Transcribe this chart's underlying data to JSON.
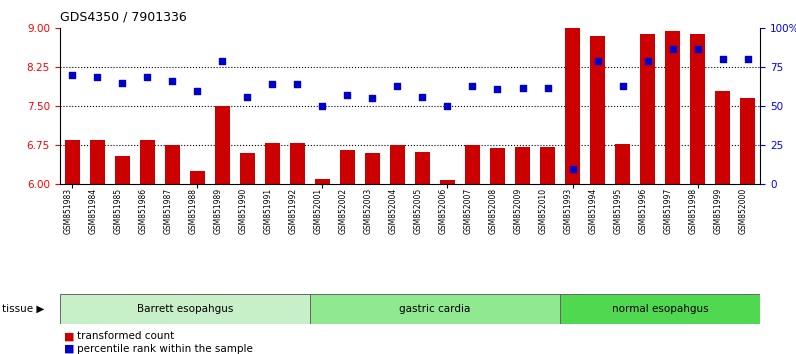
{
  "title": "GDS4350 / 7901336",
  "samples": [
    "GSM851983",
    "GSM851984",
    "GSM851985",
    "GSM851986",
    "GSM851987",
    "GSM851988",
    "GSM851989",
    "GSM851990",
    "GSM851991",
    "GSM851992",
    "GSM852001",
    "GSM852002",
    "GSM852003",
    "GSM852004",
    "GSM852005",
    "GSM852006",
    "GSM852007",
    "GSM852008",
    "GSM852009",
    "GSM852010",
    "GSM851993",
    "GSM851994",
    "GSM851995",
    "GSM851996",
    "GSM851997",
    "GSM851998",
    "GSM851999",
    "GSM852000"
  ],
  "bar_values": [
    6.85,
    6.85,
    6.55,
    6.85,
    6.75,
    6.25,
    7.5,
    6.6,
    6.8,
    6.8,
    6.1,
    6.65,
    6.6,
    6.75,
    6.62,
    6.08,
    6.75,
    6.7,
    6.72,
    6.72,
    9.0,
    8.85,
    6.78,
    8.9,
    8.95,
    8.9,
    7.8,
    7.65
  ],
  "dot_values": [
    70,
    69,
    65,
    69,
    66,
    60,
    79,
    56,
    64,
    64,
    50,
    57,
    55,
    63,
    56,
    50,
    63,
    61,
    62,
    62,
    10,
    79,
    63,
    79,
    87,
    87,
    80,
    80
  ],
  "groups": [
    {
      "label": "Barrett esopahgus",
      "start": 0,
      "end": 10,
      "color": "#c8f0c8"
    },
    {
      "label": "gastric cardia",
      "start": 10,
      "end": 20,
      "color": "#90e890"
    },
    {
      "label": "normal esopahgus",
      "start": 20,
      "end": 28,
      "color": "#50d850"
    }
  ],
  "ylim_left": [
    6,
    9
  ],
  "ylim_right": [
    0,
    100
  ],
  "yticks_left": [
    6,
    6.75,
    7.5,
    8.25,
    9
  ],
  "yticks_right": [
    0,
    25,
    50,
    75,
    100
  ],
  "ytick_labels_right": [
    "0",
    "25",
    "50",
    "75",
    "100%"
  ],
  "hlines": [
    6.75,
    7.5,
    8.25
  ],
  "bar_color": "#cc0000",
  "dot_color": "#0000cc",
  "bar_width": 0.6,
  "legend_items": [
    "transformed count",
    "percentile rank within the sample"
  ],
  "tissue_label": "tissue",
  "background_color": "#ffffff",
  "plot_bg_color": "#ffffff"
}
